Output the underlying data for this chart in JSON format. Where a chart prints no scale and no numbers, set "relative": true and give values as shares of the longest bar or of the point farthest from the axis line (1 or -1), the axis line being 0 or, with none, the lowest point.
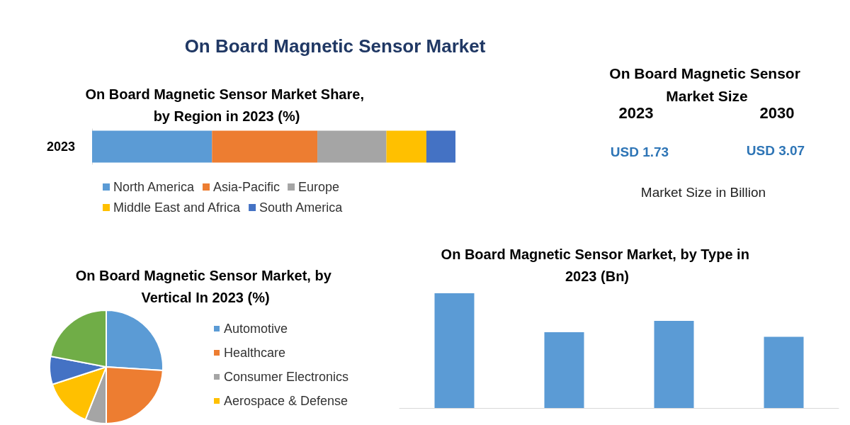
{
  "chart_data": [
    {
      "type": "bar",
      "title": "On Board Magnetic Sensor Market",
      "subtitle": "On Board Magnetic Sensor Market Share, by Region in 2023 (%)",
      "orientation": "horizontal",
      "stacked": true,
      "relative": true,
      "categories": [
        "2023"
      ],
      "legend": "bottom",
      "series": [
        {
          "name": "North America",
          "color": "#5b9bd5",
          "values": [
            0.33
          ]
        },
        {
          "name": "Asia-Pacific",
          "color": "#ed7d31",
          "values": [
            0.29
          ]
        },
        {
          "name": "Europe",
          "color": "#a5a5a5",
          "values": [
            0.19
          ]
        },
        {
          "name": "Middle East and Africa",
          "color": "#ffc000",
          "values": [
            0.11
          ]
        },
        {
          "name": "South America",
          "color": "#4472c4",
          "values": [
            0.08
          ]
        }
      ]
    },
    {
      "type": "other",
      "title": "On Board Magnetic Sensor Market Size",
      "annotations": [
        "2023",
        "2030",
        "USD 1.73",
        "USD 3.07",
        "Market Size in Billion"
      ]
    },
    {
      "type": "pie",
      "title": "On Board Magnetic Sensor Market, by Vertical In 2023 (%)",
      "categories": [
        "Automotive",
        "Healthcare",
        "Consumer Electronics",
        "Aerospace & Defense",
        null,
        null
      ],
      "values": [
        26,
        24,
        6,
        14,
        8,
        22
      ],
      "colors": [
        "#5b9bd5",
        "#ed7d31",
        "#a5a5a5",
        "#ffc000",
        "#4472c4",
        "#70ad47"
      ],
      "legend": "right"
    },
    {
      "type": "bar",
      "title": "On Board Magnetic Sensor Market, by Type in 2023 (Bn)",
      "categories": [
        null,
        null,
        null,
        null
      ],
      "values": [
        1,
        0.66,
        0.76,
        0.62
      ],
      "color": "#5b9bd5",
      "relative": true
    }
  ]
}
